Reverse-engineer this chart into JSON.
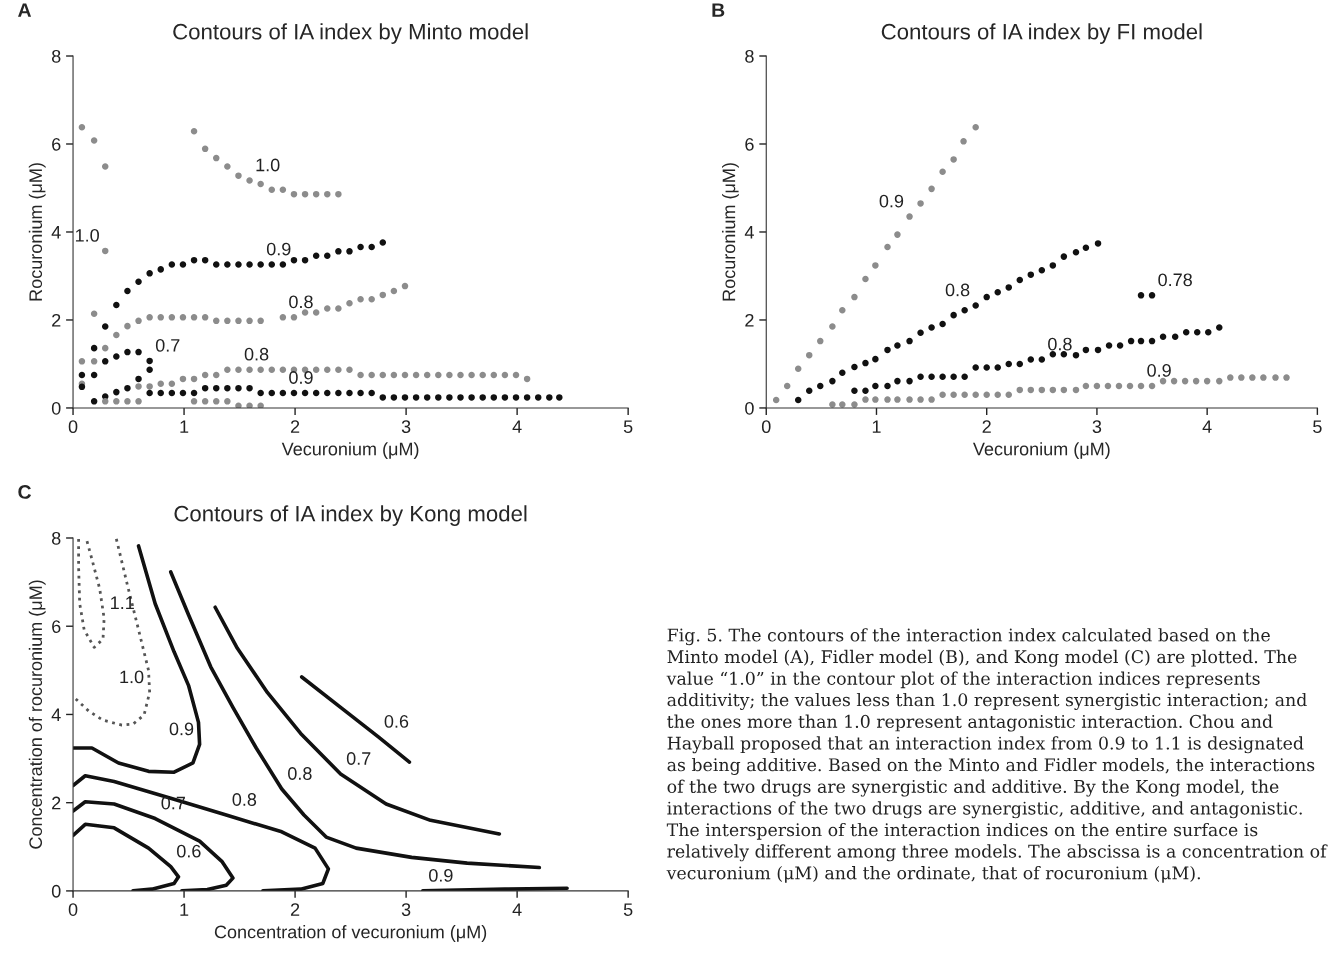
{
  "chart_data": [
    {
      "type": "scatter",
      "title": "Contours of IA index by Minto model",
      "xlabel": "Vecuronium (μM)",
      "ylabel": "Rocuronium (μM)",
      "xlim": [
        0,
        5
      ],
      "ylim": [
        0,
        8
      ],
      "xticks": [
        0,
        1,
        2,
        3,
        4,
        5
      ],
      "yticks": [
        0,
        2,
        4,
        6,
        8
      ],
      "marker": "circle",
      "series": [
        {
          "color": "#8c8c8c",
          "x": [
            0.08,
            0.19,
            0.29,
            0.29,
            0.19,
            0.08
          ],
          "values": [
            6.38,
            6.08,
            5.49,
            3.57,
            2.14,
            0.55
          ]
        },
        {
          "color": "#8c8c8c",
          "x": [
            1.09,
            1.19,
            1.29,
            1.39,
            1.49,
            1.59,
            1.69,
            1.79,
            1.89,
            1.99,
            2.09,
            2.19,
            2.29,
            2.39
          ],
          "values": [
            6.29,
            5.89,
            5.68,
            5.49,
            5.28,
            5.17,
            5.09,
            4.96,
            4.96,
            4.86,
            4.86,
            4.86,
            4.86,
            4.86
          ]
        },
        {
          "color": "#111111",
          "x": [
            0.29,
            0.39,
            0.49,
            0.59,
            0.69,
            0.79,
            0.89,
            0.99,
            1.09,
            1.19,
            1.29,
            1.39,
            1.49,
            1.59,
            1.69,
            1.79,
            1.89,
            1.99,
            2.09,
            2.19,
            2.29,
            2.39,
            2.49,
            2.59,
            2.69,
            2.79
          ],
          "values": [
            1.85,
            2.34,
            2.66,
            2.87,
            3.06,
            3.15,
            3.26,
            3.26,
            3.36,
            3.36,
            3.26,
            3.26,
            3.26,
            3.26,
            3.26,
            3.26,
            3.26,
            3.36,
            3.36,
            3.46,
            3.46,
            3.56,
            3.56,
            3.66,
            3.66,
            3.76
          ]
        },
        {
          "color": "#8c8c8c",
          "x": [
            0.08,
            0.19,
            0.29,
            0.39,
            0.49,
            0.59,
            0.69,
            0.79,
            0.89,
            0.99,
            1.09,
            1.19,
            1.29,
            1.39,
            1.49,
            1.59,
            1.69,
            1.89,
            1.99,
            2.09,
            2.19,
            2.29,
            2.39,
            2.49,
            2.59,
            2.69,
            2.79,
            2.89,
            2.99
          ],
          "values": [
            1.06,
            1.06,
            1.36,
            1.66,
            1.86,
            1.98,
            2.06,
            2.06,
            2.06,
            2.06,
            2.06,
            2.06,
            1.98,
            1.98,
            1.98,
            1.98,
            1.98,
            2.06,
            2.06,
            2.17,
            2.17,
            2.26,
            2.26,
            2.38,
            2.47,
            2.47,
            2.57,
            2.66,
            2.77
          ]
        },
        {
          "color": "#111111",
          "x": [
            0.08,
            0.08,
            0.19,
            0.19,
            0.29,
            0.39,
            0.49,
            0.59,
            0.69,
            0.69,
            0.59,
            0.49,
            0.39,
            0.29,
            0.19
          ],
          "values": [
            0.75,
            0.48,
            1.36,
            0.75,
            1.06,
            1.17,
            1.27,
            1.27,
            1.07,
            0.87,
            0.66,
            0.45,
            0.36,
            0.26,
            0.15
          ]
        },
        {
          "color": "#8c8c8c",
          "x": [
            0.59,
            0.69,
            0.79,
            0.89,
            0.99,
            1.09,
            1.19,
            1.29,
            1.39,
            1.49,
            1.59,
            1.69,
            1.79,
            1.89,
            1.99,
            2.09,
            2.19,
            2.29,
            2.39,
            2.49,
            2.59,
            2.69,
            2.79,
            2.89,
            2.99,
            3.09,
            3.19,
            3.29,
            3.39,
            3.49,
            3.59,
            3.69,
            3.79,
            3.89,
            3.99,
            4.09
          ],
          "values": [
            0.49,
            0.49,
            0.55,
            0.55,
            0.66,
            0.66,
            0.75,
            0.75,
            0.87,
            0.87,
            0.87,
            0.87,
            0.87,
            0.87,
            0.87,
            0.87,
            0.87,
            0.87,
            0.87,
            0.87,
            0.75,
            0.75,
            0.75,
            0.75,
            0.75,
            0.75,
            0.75,
            0.75,
            0.75,
            0.75,
            0.75,
            0.75,
            0.75,
            0.75,
            0.75,
            0.66
          ]
        },
        {
          "color": "#111111",
          "x": [
            0.69,
            0.79,
            0.89,
            0.99,
            1.09,
            1.19,
            1.29,
            1.39,
            1.49,
            1.59,
            1.69,
            1.79,
            1.89,
            1.99,
            2.09,
            2.19,
            2.29,
            2.39,
            2.49,
            2.59,
            2.69,
            2.79,
            2.89,
            2.99,
            3.09,
            3.19,
            3.29,
            3.39,
            3.49,
            3.59,
            3.69,
            3.79,
            3.89,
            3.99,
            4.09,
            4.19,
            4.29,
            4.38
          ],
          "values": [
            0.34,
            0.34,
            0.34,
            0.34,
            0.34,
            0.45,
            0.45,
            0.45,
            0.45,
            0.45,
            0.34,
            0.34,
            0.34,
            0.34,
            0.34,
            0.34,
            0.34,
            0.34,
            0.34,
            0.34,
            0.34,
            0.24,
            0.24,
            0.24,
            0.24,
            0.24,
            0.24,
            0.24,
            0.24,
            0.24,
            0.24,
            0.24,
            0.24,
            0.24,
            0.24,
            0.24,
            0.24,
            0.24
          ]
        },
        {
          "color": "#8c8c8c",
          "x": [
            0.29,
            0.39,
            0.49,
            0.59,
            1.09,
            1.19,
            1.29,
            1.39,
            1.49,
            1.59,
            1.69
          ],
          "values": [
            0.15,
            0.15,
            0.15,
            0.15,
            0.15,
            0.15,
            0.15,
            0.15,
            0.05,
            0.05,
            0.05
          ]
        }
      ],
      "annotations": [
        "A",
        {
          "text": "1.0",
          "x": 1.59,
          "y": 5.17
        },
        {
          "text": "1.0",
          "x": 0.29,
          "y": 3.57
        },
        {
          "text": "0.9",
          "x": 1.69,
          "y": 3.26
        },
        {
          "text": "0.8",
          "x": 1.89,
          "y": 2.06
        },
        {
          "text": "0.7",
          "x": 0.69,
          "y": 1.07
        },
        {
          "text": "0.8",
          "x": 1.49,
          "y": 0.87
        },
        {
          "text": "0.9",
          "x": 1.89,
          "y": 0.34
        }
      ]
    },
    {
      "type": "scatter",
      "title": "Contours of IA index by FI model",
      "xlabel": "Vecuronium (μM)",
      "ylabel": "Rocuronium (μM)",
      "xlim": [
        0,
        5
      ],
      "ylim": [
        0,
        8
      ],
      "xticks": [
        0,
        1,
        2,
        3,
        4,
        5
      ],
      "yticks": [
        0,
        2,
        4,
        6,
        8
      ],
      "marker": "circle",
      "series": [
        {
          "color": "#8c8c8c",
          "x": [
            0.09,
            0.19,
            0.29,
            0.39,
            0.49,
            0.6,
            0.69,
            0.8,
            0.9,
            0.99,
            1.1,
            1.19,
            1.3,
            1.4,
            1.5,
            1.6,
            1.7,
            1.79,
            1.9
          ],
          "values": [
            0.18,
            0.5,
            0.89,
            1.2,
            1.52,
            1.85,
            2.22,
            2.52,
            2.93,
            3.24,
            3.66,
            3.94,
            4.35,
            4.65,
            4.98,
            5.37,
            5.65,
            6.06,
            6.38
          ]
        },
        {
          "color": "#111111",
          "x": [
            0.29,
            0.39,
            0.49,
            0.6,
            0.69,
            0.8,
            0.9,
            0.99,
            1.1,
            1.19,
            1.3,
            1.4,
            1.5,
            1.6,
            1.7,
            1.8,
            1.9,
            2.0,
            2.1,
            2.2,
            2.3,
            2.4,
            2.5,
            2.6,
            2.7,
            2.81,
            2.9,
            3.01
          ],
          "values": [
            0.18,
            0.39,
            0.5,
            0.61,
            0.8,
            0.93,
            1.02,
            1.11,
            1.32,
            1.42,
            1.52,
            1.71,
            1.83,
            1.91,
            2.11,
            2.22,
            2.33,
            2.52,
            2.63,
            2.74,
            2.91,
            3.03,
            3.13,
            3.24,
            3.44,
            3.54,
            3.64,
            3.74
          ]
        },
        {
          "color": "#111111",
          "x": [
            3.4,
            3.5
          ],
          "values": [
            2.56,
            2.56
          ]
        },
        {
          "color": "#111111",
          "x": [
            0.8,
            0.9,
            0.99,
            1.1,
            1.19,
            1.3,
            1.4,
            1.5,
            1.6,
            1.7,
            1.8,
            1.9,
            2.0,
            2.1,
            2.2,
            2.3,
            2.4,
            2.5,
            2.6,
            2.7,
            2.81,
            2.9,
            3.01,
            3.11,
            3.21,
            3.31,
            3.4,
            3.5,
            3.6,
            3.71,
            3.81,
            3.91,
            4.01,
            4.11
          ],
          "values": [
            0.39,
            0.39,
            0.5,
            0.5,
            0.61,
            0.61,
            0.71,
            0.71,
            0.71,
            0.71,
            0.71,
            0.92,
            0.92,
            0.92,
            1.0,
            1.0,
            1.1,
            1.1,
            1.22,
            1.22,
            1.2,
            1.32,
            1.32,
            1.42,
            1.42,
            1.52,
            1.52,
            1.52,
            1.62,
            1.62,
            1.72,
            1.72,
            1.72,
            1.83
          ]
        },
        {
          "color": "#8c8c8c",
          "x": [
            0.6,
            0.69,
            0.8,
            0.9,
            0.99,
            1.1,
            1.19,
            1.3,
            1.4,
            1.5,
            1.6,
            1.7,
            1.8,
            1.9,
            2.0,
            2.1,
            2.2,
            2.3,
            2.4,
            2.5,
            2.6,
            2.7,
            2.81,
            2.9,
            3.0,
            3.1,
            3.2,
            3.3,
            3.4,
            3.5,
            3.6,
            3.7,
            3.8,
            3.9,
            4.0,
            4.11,
            4.21,
            4.31,
            4.41,
            4.51,
            4.62,
            4.72
          ],
          "values": [
            0.08,
            0.08,
            0.08,
            0.19,
            0.19,
            0.19,
            0.19,
            0.19,
            0.19,
            0.19,
            0.3,
            0.3,
            0.3,
            0.3,
            0.3,
            0.3,
            0.3,
            0.41,
            0.41,
            0.41,
            0.41,
            0.41,
            0.41,
            0.5,
            0.5,
            0.5,
            0.5,
            0.5,
            0.5,
            0.5,
            0.61,
            0.61,
            0.61,
            0.61,
            0.61,
            0.61,
            0.69,
            0.69,
            0.69,
            0.69,
            0.69,
            0.69
          ]
        }
      ],
      "annotations": [
        "B",
        {
          "text": "0.9",
          "x": 1.3,
          "y": 4.35
        },
        {
          "text": "0.8",
          "x": 1.9,
          "y": 2.33
        },
        {
          "text": "0.78",
          "x": 3.5,
          "y": 2.56
        },
        {
          "text": "0.8",
          "x": 2.5,
          "y": 1.1
        },
        {
          "text": "0.9",
          "x": 3.4,
          "y": 0.5
        }
      ]
    },
    {
      "type": "line",
      "title": "Contours of IA index by Kong model",
      "xlabel": "Concentration of vecuronium (μM)",
      "ylabel": "Concentration of rocuronium (μM)",
      "xlim": [
        0,
        5
      ],
      "ylim": [
        0,
        8
      ],
      "xticks": [
        0,
        1,
        2,
        3,
        4,
        5
      ],
      "yticks": [
        0,
        2,
        4,
        6,
        8
      ],
      "series": [
        {
          "color": "#555555",
          "line_style": "dotted",
          "x": [
            0.05,
            0.05,
            0.06,
            0.1,
            0.19,
            0.27,
            0.28,
            0.24,
            0.17,
            0.12
          ],
          "values": [
            7.98,
            7.35,
            6.51,
            5.92,
            5.52,
            5.71,
            6.18,
            6.85,
            7.52,
            7.98
          ]
        },
        {
          "color": "#555555",
          "line_style": "dotted",
          "x": [
            0.39,
            0.49,
            0.59,
            0.68,
            0.69,
            0.64,
            0.54,
            0.44,
            0.27,
            0.14,
            0
          ],
          "values": [
            7.98,
            6.93,
            5.92,
            5.0,
            4.5,
            3.99,
            3.78,
            3.76,
            3.87,
            4.08,
            4.41
          ]
        },
        {
          "color": "#111111",
          "x": [
            0.59,
            0.74,
            0.91,
            1.04,
            1.13,
            1.14,
            1.08,
            0.91,
            0.68,
            0.41,
            0.17,
            0
          ],
          "values": [
            7.82,
            6.51,
            5.42,
            4.66,
            3.82,
            3.32,
            2.9,
            2.69,
            2.71,
            2.9,
            3.24,
            3.24
          ]
        },
        {
          "color": "#111111",
          "x": [
            0.88,
            1.04,
            1.24,
            1.44,
            1.65,
            1.88,
            2.08,
            2.28,
            2.55,
            3.05,
            3.55,
            4.2
          ],
          "values": [
            7.23,
            6.26,
            5.08,
            4.16,
            3.24,
            2.31,
            1.72,
            1.22,
            0.97,
            0.76,
            0.63,
            0.53
          ]
        },
        {
          "color": "#111111",
          "x": [
            1.28,
            1.48,
            1.75,
            2.05,
            2.41,
            2.82,
            3.22,
            3.84
          ],
          "values": [
            6.43,
            5.5,
            4.5,
            3.57,
            2.65,
            1.97,
            1.6,
            1.29
          ]
        },
        {
          "color": "#111111",
          "x": [
            2.06,
            2.41,
            2.75,
            3.03
          ],
          "values": [
            4.85,
            4.16,
            3.49,
            2.92
          ]
        },
        {
          "color": "#111111",
          "x": [
            0,
            0.11,
            0.37,
            0.88,
            1.38,
            1.88,
            2.18,
            2.3,
            2.25,
            2.05,
            1.71
          ],
          "values": [
            2.39,
            2.61,
            2.48,
            2.1,
            1.72,
            1.34,
            0.97,
            0.5,
            0.17,
            0.04,
            0
          ]
        },
        {
          "color": "#111111",
          "x": [
            0,
            0.11,
            0.37,
            0.74,
            1.14,
            1.34,
            1.44,
            1.38,
            1.21,
            0.98
          ],
          "values": [
            1.81,
            2.02,
            1.97,
            1.64,
            1.13,
            0.67,
            0.29,
            0.13,
            0.03,
            0
          ]
        },
        {
          "color": "#111111",
          "x": [
            0,
            0.11,
            0.37,
            0.68,
            0.88,
            0.95,
            0.91,
            0.71,
            0.54
          ],
          "values": [
            1.26,
            1.51,
            1.43,
            0.97,
            0.55,
            0.32,
            0.17,
            0.04,
            0
          ]
        },
        {
          "color": "#111111",
          "x": [
            3.15,
            3.89,
            4.45
          ],
          "values": [
            0,
            0.04,
            0.06
          ]
        }
      ],
      "annotations": [
        "C",
        {
          "text": "1.1",
          "x": 0.28,
          "y": 6.18
        },
        {
          "text": "1.0",
          "x": 0.69,
          "y": 4.5
        },
        {
          "text": "0.9",
          "x": 1.14,
          "y": 3.32
        },
        {
          "text": "0.8",
          "x": 1.38,
          "y": 1.72
        },
        {
          "text": "0.8",
          "x": 1.88,
          "y": 2.31
        },
        {
          "text": "0.7",
          "x": 2.41,
          "y": 2.65
        },
        {
          "text": "0.6",
          "x": 2.75,
          "y": 3.49
        },
        {
          "text": "0.7",
          "x": 0.74,
          "y": 1.64
        },
        {
          "text": "0.6",
          "x": 0.88,
          "y": 0.55
        },
        {
          "text": "0.9",
          "x": 3.15,
          "y": 0
        },
        "Fig. 5. The contours of the interaction index calculated based on the Minto model (A), Fidler model (B), and Kong model (C) are plotted. The value “1.0” in the contour plot of the interaction indices represents additivity; the values less than 1.0 represent synergistic interaction; and the ones more than 1.0 represent antagonistic interaction. Chou and Hayball proposed that an interaction index from 0.9 to 1.1 is designated as being additive. Based on the Minto and Fidler models, the interactions of the two drugs are synergistic and additive. By the Kong model, the interactions of the two drugs are synergistic, additive, and antagonistic. The interspersion of the interaction indices on the entire surface is relatively different among three models. The abscissa is a concentration of vecuronium (μM) and the ordinate, that of rocuronium (μM)."
      ]
    }
  ]
}
